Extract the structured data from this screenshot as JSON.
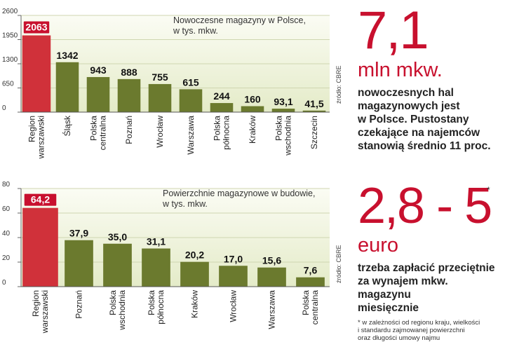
{
  "chart_data": [
    {
      "type": "bar",
      "title": "Nowoczesne magazyny w Polsce,",
      "subtitle": "w tys. mkw.",
      "categories": [
        [
          "Region",
          "warszawski"
        ],
        [
          "Śląsk"
        ],
        [
          "Polska",
          "centralna"
        ],
        [
          "Poznań"
        ],
        [
          "Wrocław"
        ],
        [
          "Warszawa"
        ],
        [
          "Polska",
          "północna"
        ],
        [
          "Kraków"
        ],
        [
          "Polska",
          "wschodnia"
        ],
        [
          "Szczecin"
        ]
      ],
      "values": [
        2063,
        1342,
        943,
        888,
        755,
        615,
        244,
        160,
        93.1,
        41.5
      ],
      "value_labels": [
        "2063",
        "1342",
        "943",
        "888",
        "755",
        "615",
        "244",
        "160",
        "93,1",
        "41,5"
      ],
      "highlight_index": 0,
      "ylim": [
        0,
        2600
      ],
      "yticks": [
        0,
        650,
        1300,
        1950,
        2600
      ],
      "ytick_labels": [
        "0",
        "650",
        "1300",
        "1950",
        "2600"
      ],
      "source": "źródło: CBRE"
    },
    {
      "type": "bar",
      "title": "Powierzchnie magazynowe w budowie,",
      "subtitle": "w tys. mkw.",
      "categories": [
        [
          "Region",
          "warszawski"
        ],
        [
          "Poznań"
        ],
        [
          "Polska",
          "wschodnia"
        ],
        [
          "Polska",
          "północna"
        ],
        [
          "Kraków"
        ],
        [
          "Wrocław"
        ],
        [
          "Warszawa"
        ],
        [
          "Polska",
          "centralna"
        ]
      ],
      "values": [
        64.2,
        37.9,
        35.0,
        31.1,
        20.2,
        17.0,
        15.6,
        7.6
      ],
      "value_labels": [
        "64,2",
        "37,9",
        "35,0",
        "31,1",
        "20,2",
        "17,0",
        "15,6",
        "7,6"
      ],
      "highlight_index": 0,
      "ylim": [
        0,
        80
      ],
      "yticks": [
        0,
        20,
        40,
        60,
        80
      ],
      "ytick_labels": [
        "0",
        "20",
        "40",
        "60",
        "80"
      ],
      "source": "źródło: CBRE"
    }
  ],
  "colors": {
    "accent": "#c8102e",
    "bar": "#6b7a2e",
    "highlight": "#d0313a",
    "panel": "#e4ebc8",
    "grid": "#cfd6b0"
  },
  "side": {
    "fact1": {
      "number": "7,1",
      "unit": "mln mkw.",
      "text": [
        "nowoczesnych hal",
        "magazynowych jest",
        "w Polsce. Pustostany",
        "czekające na najemców",
        "stanowią średnio 11 proc."
      ]
    },
    "fact2": {
      "number": "2,8 - 5",
      "asterisk": "*",
      "unit": "euro",
      "text": [
        "trzeba zapłacić przeciętnie",
        "za wynajem mkw. magazynu",
        "miesięcznie"
      ],
      "footnote": [
        "* w zależności od regionu kraju, wielkości",
        "i standardu zajmowanej powierzchni",
        "oraz długości umowy najmu"
      ]
    }
  }
}
